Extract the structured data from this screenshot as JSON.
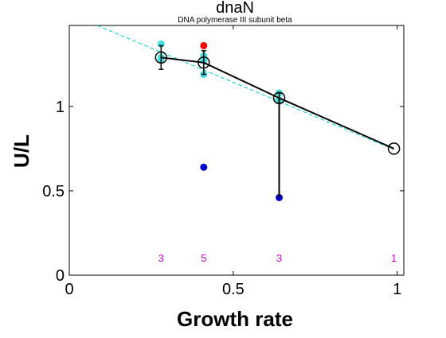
{
  "chart_data": {
    "type": "line",
    "title": "dnaN",
    "subtitle": "DNA polymerase III subunit beta",
    "xlabel": "Growth rate",
    "ylabel": "U/L",
    "xlim": [
      0,
      1.02
    ],
    "ylim": [
      0,
      1.48
    ],
    "xticks": [
      {
        "value": 0,
        "label": "0"
      },
      {
        "value": 0.5,
        "label": "0.5"
      },
      {
        "value": 1,
        "label": "1"
      }
    ],
    "yticks": [
      {
        "value": 0,
        "label": "0"
      },
      {
        "value": 0.5,
        "label": "0.5"
      },
      {
        "value": 1,
        "label": "1"
      }
    ],
    "grid": false,
    "colors": {
      "mean_line": "#000000",
      "fit_line": "#00cccc",
      "replicates": "#40e0e0",
      "outlier_high": "#ff0000",
      "outlier_low": "#0000cc",
      "count_labels": "#d000d0"
    },
    "means": [
      {
        "x": 0.28,
        "y": 1.29,
        "err": 0.07
      },
      {
        "x": 0.41,
        "y": 1.26,
        "err": 0.07
      },
      {
        "x": 0.64,
        "y": 1.05,
        "err": 0.03
      },
      {
        "x": 0.99,
        "y": 0.75,
        "err": 0
      }
    ],
    "replicates": [
      {
        "x": 0.28,
        "y": 1.37
      },
      {
        "x": 0.28,
        "y": 1.29
      },
      {
        "x": 0.28,
        "y": 1.28
      },
      {
        "x": 0.41,
        "y": 1.3
      },
      {
        "x": 0.41,
        "y": 1.27
      },
      {
        "x": 0.41,
        "y": 1.19
      },
      {
        "x": 0.64,
        "y": 1.08
      },
      {
        "x": 0.64,
        "y": 1.04
      }
    ],
    "outliers": [
      {
        "x": 0.41,
        "y": 1.36,
        "kind": "high"
      },
      {
        "x": 0.41,
        "y": 0.64,
        "kind": "low"
      },
      {
        "x": 0.64,
        "y": 0.46,
        "kind": "low"
      }
    ],
    "drop_line": {
      "x": 0.64,
      "y_from": 1.05,
      "y_to": 0.46
    },
    "fit_line": {
      "x_from": 0.085,
      "y_from": 1.48,
      "x_to": 0.99,
      "y_to": 0.745
    },
    "counts": [
      {
        "x": 0.28,
        "label": "3"
      },
      {
        "x": 0.41,
        "label": "5"
      },
      {
        "x": 0.64,
        "label": "3"
      },
      {
        "x": 0.99,
        "label": "1"
      }
    ]
  }
}
